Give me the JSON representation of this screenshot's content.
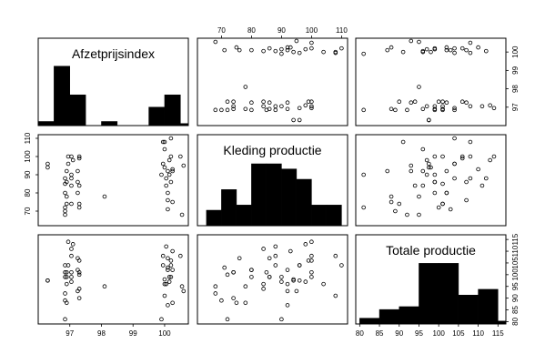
{
  "chart_data": {
    "type": "scatter",
    "variables": [
      "Afzetprijsindex",
      "Kleding productie",
      "Totale productie"
    ],
    "axis_ticks": [
      [
        "97",
        "98",
        "99",
        "100"
      ],
      [
        "70",
        "80",
        "90",
        "100",
        "110"
      ],
      [
        "80",
        "85",
        "90",
        "95",
        "100",
        "105",
        "110",
        "115"
      ]
    ],
    "data": {
      "Afzetprijsindex": [
        96.3,
        96.3,
        96.85,
        96.85,
        96.85,
        96.85,
        96.85,
        96.85,
        96.9,
        96.9,
        96.9,
        96.9,
        96.95,
        96.95,
        97.05,
        97.05,
        97.05,
        97.05,
        97.05,
        97.1,
        97.25,
        97.25,
        97.25,
        97.3,
        97.3,
        97.3,
        97.3,
        97.3,
        98.1,
        99.9,
        99.95,
        99.95,
        100.0,
        100.0,
        100.0,
        100.05,
        100.05,
        100.1,
        100.1,
        100.1,
        100.1,
        100.15,
        100.15,
        100.2,
        100.2,
        100.2,
        100.25,
        100.25,
        100.25,
        100.5,
        100.55,
        100.6
      ],
      "Kleding productie": [
        94,
        96,
        88,
        85,
        80,
        68,
        70,
        72,
        92,
        86,
        78,
        74,
        96,
        100,
        88,
        84,
        90,
        100,
        74,
        98,
        92,
        86,
        80,
        72,
        100,
        99,
        84,
        74,
        78,
        90,
        108,
        96,
        104,
        94,
        108,
        88,
        84,
        92,
        80,
        76,
        71,
        98,
        90,
        100,
        110,
        86,
        93,
        92,
        75,
        100,
        68,
        95
      ],
      "Totale productie": [
        97.5,
        97.5,
        104,
        101,
        99,
        92,
        89,
        81,
        96,
        99,
        88,
        101,
        104,
        114,
        108,
        111,
        97,
        99,
        101,
        113,
        93,
        107,
        102,
        100,
        101,
        106,
        94,
        90,
        95,
        81,
        108,
        104,
        96,
        98,
        91,
        112,
        96,
        87,
        102,
        107,
        103,
        97,
        99,
        106,
        104,
        99,
        110,
        102,
        88,
        108,
        95,
        93
      ]
    },
    "histograms": {
      "Afzetprijsindex": {
        "breaks": [
          96.0,
          96.5,
          97.0,
          97.5,
          98.0,
          98.5,
          99.0,
          99.5,
          100.0,
          100.5,
          101.0
        ],
        "counts": [
          2,
          29,
          15,
          0,
          2,
          0,
          0,
          9,
          15,
          1
        ]
      },
      "Kleding productie": {
        "breaks": [
          65,
          70,
          75,
          80,
          85,
          90,
          95,
          100,
          105,
          110,
          115
        ],
        "counts": [
          3,
          7,
          4,
          12,
          12,
          11,
          9,
          4,
          4,
          0
        ]
      },
      "Totale productie": {
        "breaks": [
          80,
          85,
          90,
          95,
          100,
          105,
          110,
          115,
          120
        ],
        "counts": [
          2,
          5,
          6,
          21,
          21,
          10,
          12,
          1
        ]
      }
    },
    "grid": false,
    "legend": "none"
  }
}
